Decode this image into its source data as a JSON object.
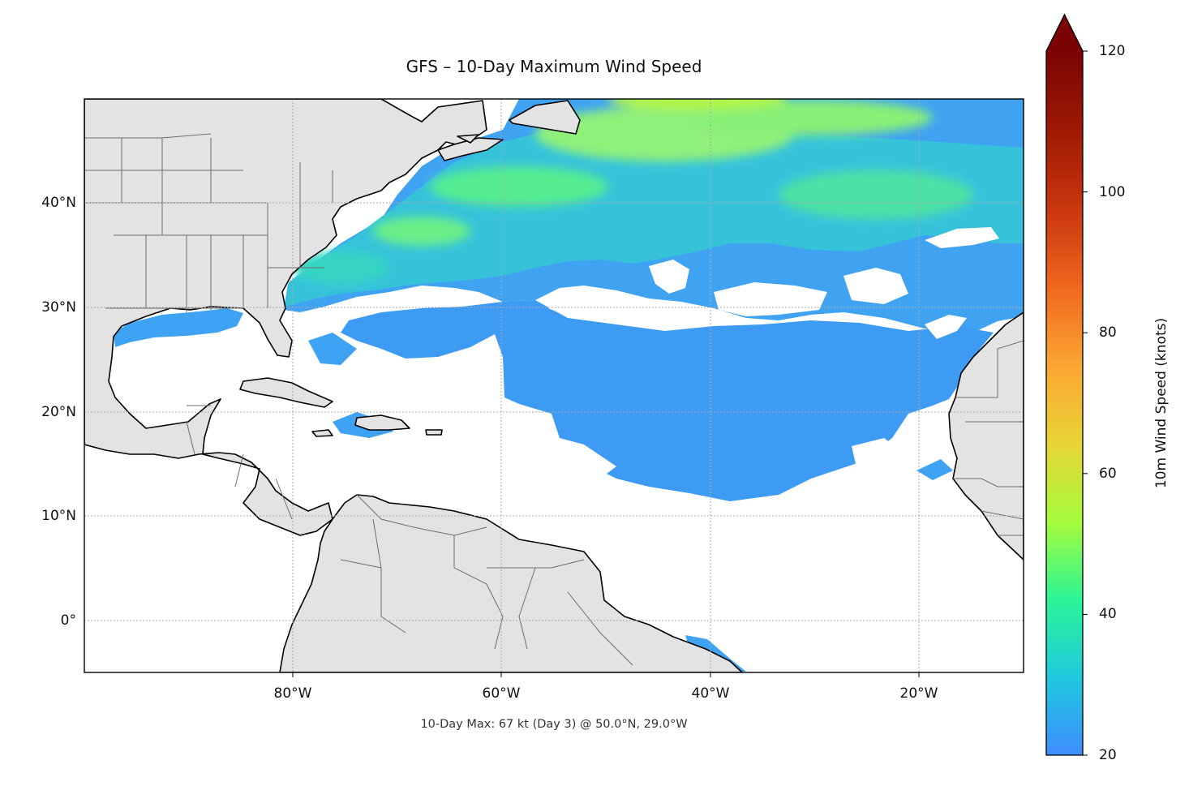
{
  "title": "GFS – 10-Day Maximum Wind Speed",
  "footnote": "10-Day Max: 67 kt (Day 3) @ 50.0°N, 29.0°W",
  "map": {
    "extent": {
      "lon": [
        -100,
        -10
      ],
      "lat": [
        -5,
        50
      ]
    },
    "lat_ticks": [
      {
        "value": 40,
        "label": "40°N"
      },
      {
        "value": 30,
        "label": "30°N"
      },
      {
        "value": 20,
        "label": "20°N"
      },
      {
        "value": 10,
        "label": "10°N"
      },
      {
        "value": 0,
        "label": "0°"
      }
    ],
    "lon_ticks": [
      {
        "value": -80,
        "label": "80°W"
      },
      {
        "value": -60,
        "label": "60°W"
      },
      {
        "value": -40,
        "label": "40°W"
      },
      {
        "value": -20,
        "label": "20°W"
      }
    ],
    "gridlines": true,
    "land_color": "#e3e3e3",
    "coast_color": "#000000",
    "border_color": "#6e6e6e",
    "max_point": {
      "lat": 50.0,
      "lon": -29.0,
      "value": 67,
      "day": 3,
      "unit": "kt"
    }
  },
  "colorbar": {
    "label": "10m Wind Speed (knots)",
    "min": 20,
    "max": 120,
    "extend": "max",
    "ticks": [
      "20",
      "40",
      "60",
      "80",
      "100",
      "120"
    ],
    "colormap": "turbo",
    "stops": [
      "#3e8efc",
      "#1fc9dd",
      "#2af597",
      "#a4fc3c",
      "#e6d535",
      "#fba834",
      "#f06a1e",
      "#cc3810",
      "#a11b04",
      "#7a0403"
    ]
  }
}
